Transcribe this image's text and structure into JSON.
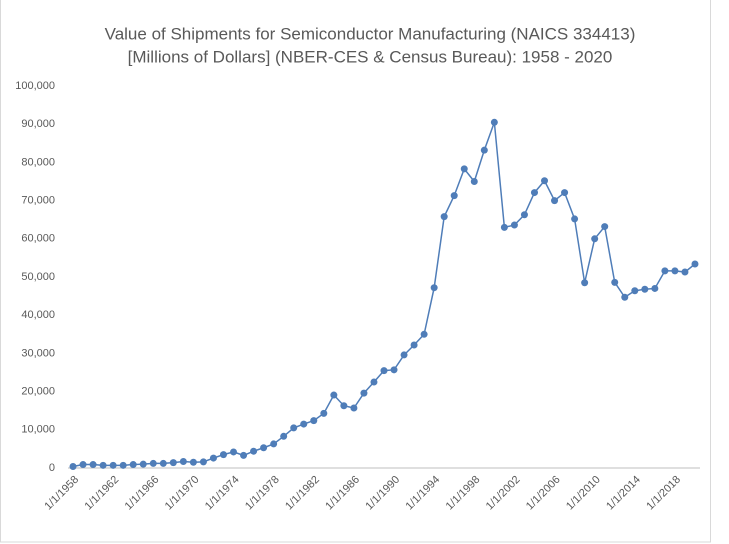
{
  "chart_data": {
    "type": "line",
    "title": [
      "Value of Shipments for Semiconductor Manufacturing (NAICS 334413)",
      "[Millions of Dollars] (NBER-CES & Census Bureau): 1958 - 2020"
    ],
    "categories": [
      "1/1/1958",
      null,
      null,
      null,
      "1/1/1962",
      null,
      null,
      null,
      "1/1/1966",
      null,
      null,
      null,
      "1/1/1970",
      null,
      null,
      null,
      "1/1/1974",
      null,
      null,
      null,
      "1/1/1978",
      null,
      null,
      null,
      "1/1/1982",
      null,
      null,
      null,
      "1/1/1986",
      null,
      null,
      null,
      "1/1/1990",
      null,
      null,
      null,
      "1/1/1994",
      null,
      null,
      null,
      "1/1/1998",
      null,
      null,
      null,
      "1/1/2002",
      null,
      null,
      null,
      "1/1/2006",
      null,
      null,
      null,
      "1/1/2010",
      null,
      null,
      null,
      "1/1/2014",
      null,
      null,
      null,
      "1/1/2018",
      null,
      null
    ],
    "values": [
      400,
      900,
      900,
      700,
      700,
      700,
      900,
      1000,
      1200,
      1200,
      1400,
      1700,
      1500,
      1600,
      2600,
      3500,
      4200,
      3300,
      4400,
      5300,
      6300,
      8300,
      10500,
      11500,
      12400,
      14300,
      19100,
      16300,
      15700,
      19600,
      22500,
      25500,
      25700,
      29600,
      32200,
      35000,
      47200,
      65800,
      71300,
      78300,
      75000,
      83200,
      90500,
      63000,
      63600,
      66300,
      72100,
      75200,
      70000,
      72100,
      65200,
      48500,
      60000,
      63200,
      48600,
      44700,
      46400,
      46800,
      47000,
      51600,
      51600,
      51300,
      53400
    ],
    "color": "#4f7db8",
    "ylim": [
      0,
      100000
    ],
    "yticks": [
      0,
      {
        "value": 10000,
        "label": "10,000"
      },
      {
        "value": 20000,
        "label": "20,000"
      },
      {
        "value": 30000,
        "label": "30,000"
      },
      {
        "value": 40000,
        "label": "40,000"
      },
      {
        "value": 50000,
        "label": "50,000"
      },
      {
        "value": 60000,
        "label": "60,000"
      },
      {
        "value": 70000,
        "label": "70,000"
      },
      {
        "value": 80000,
        "label": "80,000"
      },
      {
        "value": 90000,
        "label": "90,000"
      },
      {
        "value": 100000,
        "label": "100,000"
      }
    ],
    "grid": false
  }
}
